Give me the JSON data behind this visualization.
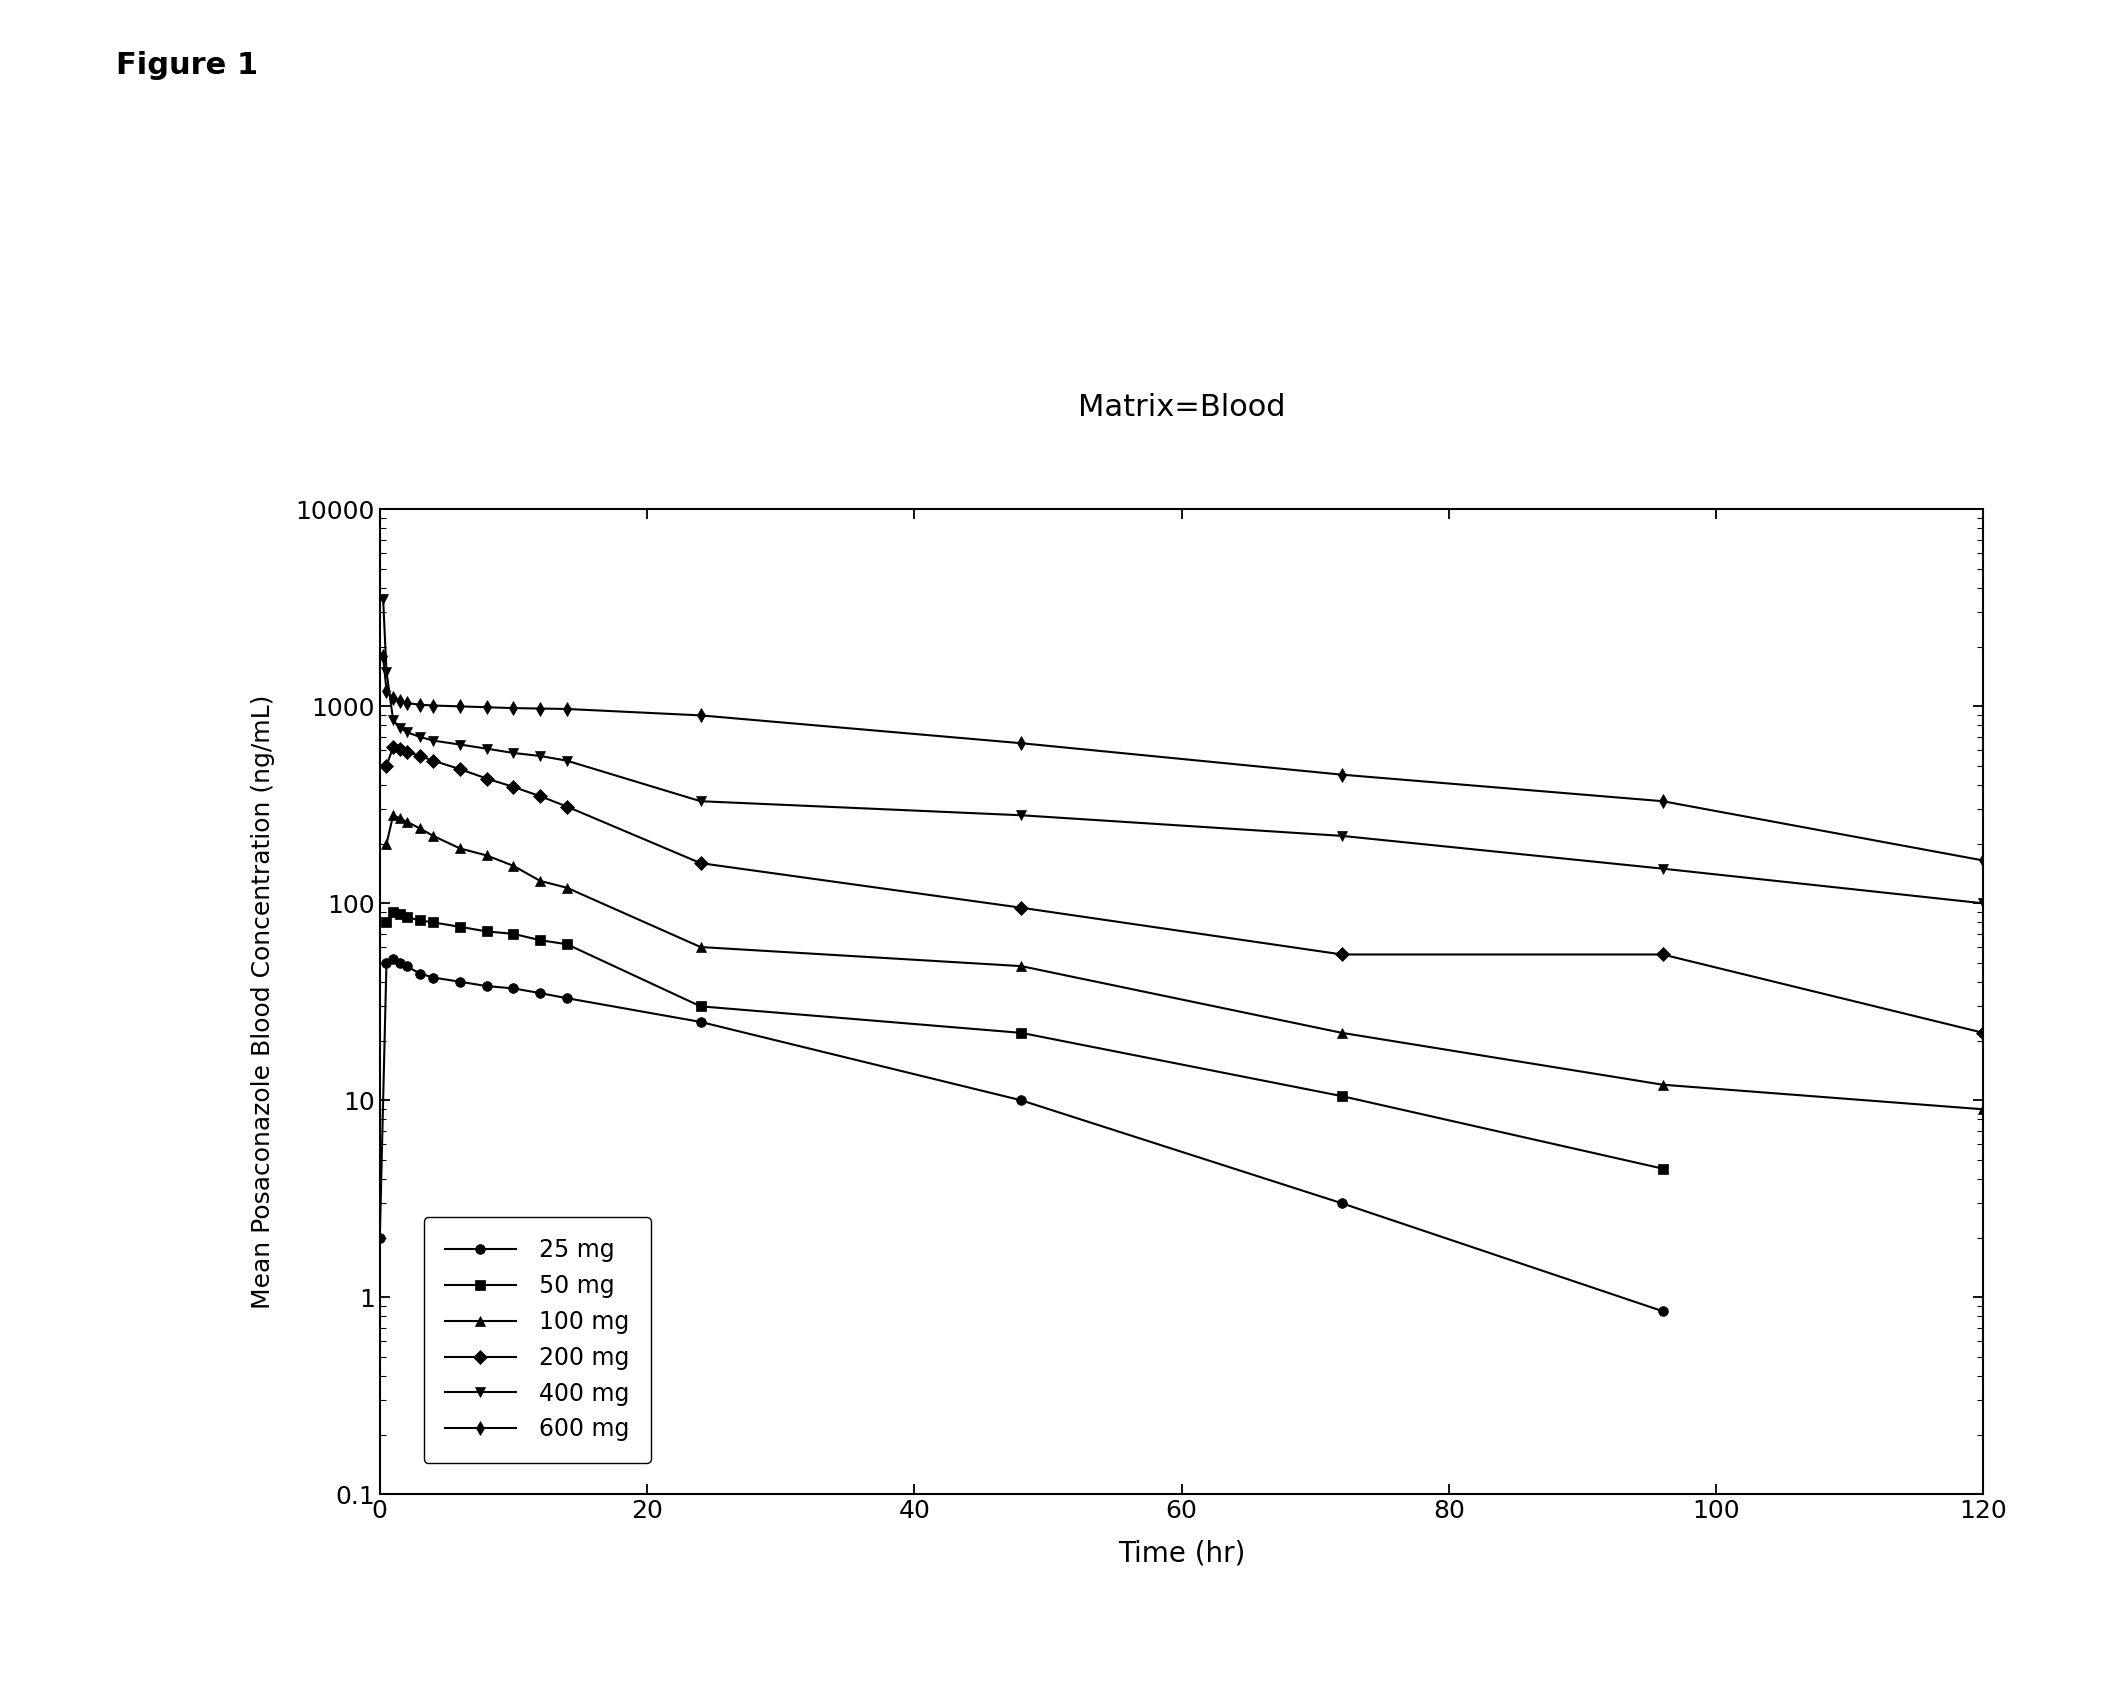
{
  "title": "Matrix=Blood",
  "figure_label": "Figure 1",
  "xlabel": "Time (hr)",
  "ylabel": "Mean Posaconazole Blood Concentration (ng/mL)",
  "xlim": [
    0,
    120
  ],
  "ylim": [
    0.1,
    10000
  ],
  "xticks": [
    0,
    20,
    40,
    60,
    80,
    100,
    120
  ],
  "xtick_labels": [
    "0",
    "20",
    "40",
    "60",
    "80",
    "100",
    "120"
  ],
  "yticks": [
    0.1,
    1,
    10,
    100,
    1000,
    10000
  ],
  "ytick_labels": [
    "0.1",
    "1",
    "10",
    "100",
    "1000",
    "10000"
  ],
  "background_color": "#ffffff",
  "line_color": "#000000",
  "series": [
    {
      "label": "25 mg",
      "marker": "o",
      "time": [
        0,
        0.5,
        1,
        1.5,
        2,
        3,
        4,
        6,
        8,
        10,
        12,
        14,
        24,
        48,
        72,
        96
      ],
      "conc": [
        2.0,
        50,
        52,
        50,
        48,
        44,
        42,
        40,
        38,
        37,
        35,
        33,
        25,
        10,
        3.0,
        0.85
      ]
    },
    {
      "label": "50 mg",
      "marker": "s",
      "time": [
        0.5,
        1,
        1.5,
        2,
        3,
        4,
        6,
        8,
        10,
        12,
        14,
        24,
        48,
        72,
        96
      ],
      "conc": [
        80,
        90,
        88,
        85,
        82,
        80,
        76,
        72,
        70,
        65,
        62,
        30,
        22,
        10.5,
        4.5
      ]
    },
    {
      "label": "100 mg",
      "marker": "^",
      "time": [
        0.5,
        1,
        1.5,
        2,
        3,
        4,
        6,
        8,
        10,
        12,
        14,
        24,
        48,
        72,
        96,
        120
      ],
      "conc": [
        200,
        280,
        270,
        260,
        240,
        220,
        190,
        175,
        155,
        130,
        120,
        60,
        48,
        22,
        12,
        9
      ]
    },
    {
      "label": "200 mg",
      "marker": "D",
      "time": [
        0.5,
        1,
        1.5,
        2,
        3,
        4,
        6,
        8,
        10,
        12,
        14,
        24,
        48,
        72,
        96,
        120
      ],
      "conc": [
        500,
        620,
        610,
        590,
        560,
        530,
        480,
        430,
        390,
        350,
        310,
        160,
        95,
        55,
        55,
        22
      ]
    },
    {
      "label": "400 mg",
      "marker": "v",
      "time": [
        0.25,
        0.5,
        1,
        1.5,
        2,
        3,
        4,
        6,
        8,
        10,
        12,
        14,
        24,
        48,
        72,
        96,
        120
      ],
      "conc": [
        3500,
        1500,
        850,
        780,
        740,
        700,
        670,
        640,
        610,
        580,
        560,
        530,
        330,
        280,
        220,
        150,
        100
      ]
    },
    {
      "label": "600 mg",
      "marker": "d",
      "time": [
        0.25,
        0.5,
        1,
        1.5,
        2,
        3,
        4,
        6,
        8,
        10,
        12,
        14,
        24,
        48,
        72,
        96,
        120
      ],
      "conc": [
        1800,
        1200,
        1100,
        1060,
        1040,
        1020,
        1010,
        1000,
        990,
        980,
        975,
        970,
        900,
        650,
        450,
        330,
        165
      ]
    }
  ]
}
